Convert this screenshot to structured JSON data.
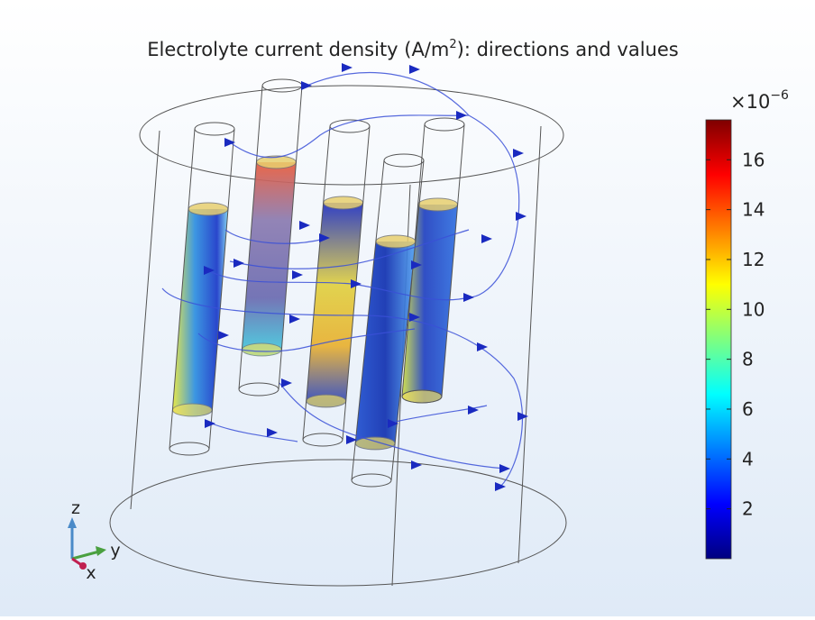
{
  "chart_data": {
    "type": "colorbar",
    "title": [
      "Electrolyte current density (A/m",
      "2",
      "): directions and values"
    ],
    "multiplier": [
      "×10",
      "−6"
    ],
    "colorbar": {
      "lim": [
        0,
        17.6
      ],
      "ticks": [
        2,
        4,
        6,
        8,
        10,
        12,
        14,
        16
      ],
      "colors": [
        "#00007f",
        "#0000ff",
        "#007fff",
        "#00ffff",
        "#7fff7f",
        "#ffff00",
        "#ff7f00",
        "#ff0000",
        "#7f0000"
      ]
    },
    "axis_labels": {
      "z": "z",
      "y": "y",
      "x": "x"
    }
  }
}
